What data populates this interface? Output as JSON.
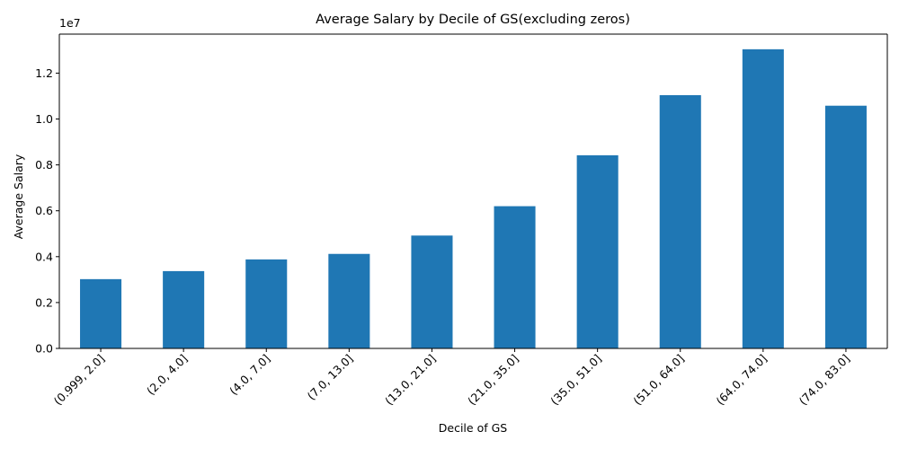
{
  "chart_data": {
    "type": "bar",
    "title": "Average Salary by Decile of GS(excluding zeros)",
    "xlabel": "Decile of GS",
    "ylabel": "Average Salary",
    "y_offset_text": "1e7",
    "categories": [
      "(0.999, 2.0]",
      "(2.0, 4.0]",
      "(4.0, 7.0]",
      "(7.0, 13.0]",
      "(13.0, 21.0]",
      "(21.0, 35.0]",
      "(35.0, 51.0]",
      "(51.0, 64.0]",
      "(64.0, 74.0]",
      "(74.0, 83.0]"
    ],
    "values": [
      3020000,
      3370000,
      3880000,
      4120000,
      4920000,
      6200000,
      8420000,
      11040000,
      13040000,
      10580000
    ],
    "ylim": [
      0,
      13700000
    ],
    "yticks": [
      0,
      2000000,
      4000000,
      6000000,
      8000000,
      10000000,
      12000000
    ],
    "ytick_labels": [
      "0.0",
      "0.2",
      "0.4",
      "0.6",
      "0.8",
      "1.0",
      "1.2"
    ],
    "bar_color": "#1f77b4",
    "grid": false,
    "legend": "none"
  }
}
